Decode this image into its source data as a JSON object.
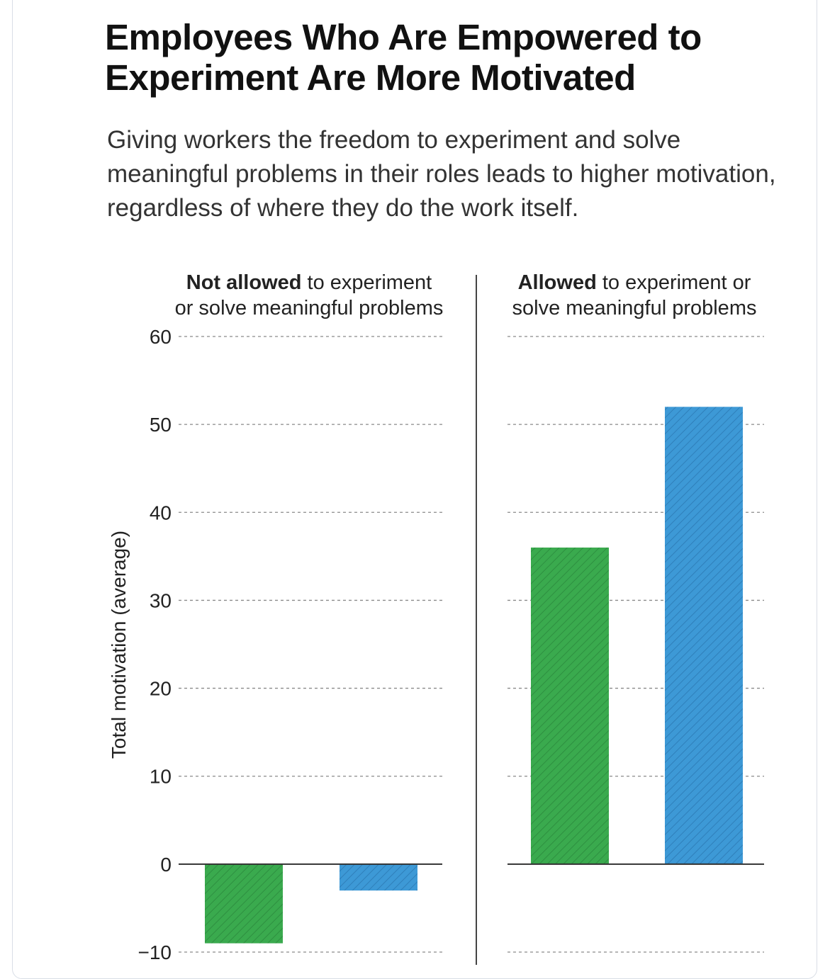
{
  "chart_data": {
    "type": "bar",
    "title": "Employees Who Are Empowered to Experiment Are More Motivated",
    "subtitle": "Giving workers the freedom to experiment and solve meaningful problems in their roles leads to higher motivation, regardless of where they do the work itself.",
    "ylabel": "Total motivation (average)",
    "ylim": [
      -10,
      60
    ],
    "yticks": [
      60,
      50,
      40,
      30,
      20,
      10,
      0,
      -10
    ],
    "ytick_labels": [
      "60",
      "50",
      "40",
      "30",
      "20",
      "10",
      "0",
      "−10"
    ],
    "grid": true,
    "panels": [
      {
        "title_bold": "Not allowed",
        "title_line1_rest": " to experiment",
        "title_line2": "or solve meaningful problems",
        "values": [
          -9,
          -3
        ]
      },
      {
        "title_bold": "Allowed",
        "title_line1_rest": " to experiment or",
        "title_line2": "solve meaningful problems",
        "values": [
          36,
          52
        ]
      }
    ],
    "series_colors": [
      "#3aaa4e",
      "#3d99d6"
    ],
    "hatch_colors": [
      "#2e8f40",
      "#2f7fba"
    ]
  }
}
